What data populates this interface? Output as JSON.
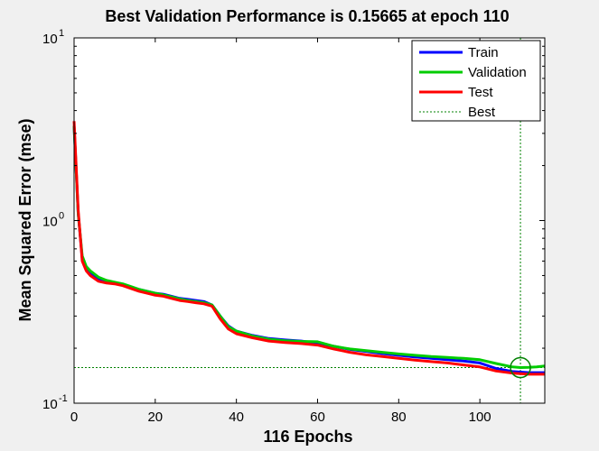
{
  "chart_data": {
    "type": "line",
    "title": "Best Validation Performance is 0.15665 at epoch 110",
    "xlabel": "116 Epochs",
    "ylabel": "Mean Squared Error  (mse)",
    "xlim": [
      0,
      116
    ],
    "ylim": [
      0.1,
      10
    ],
    "yscale": "log",
    "grid": false,
    "legend_position": "top-right",
    "x_ticks": [
      "0",
      "20",
      "40",
      "60",
      "80",
      "100"
    ],
    "x_tick_values": [
      0,
      20,
      40,
      60,
      80,
      100
    ],
    "y_ticks": [
      {
        "base": "10",
        "exp": "1",
        "value": 10
      },
      {
        "base": "10",
        "exp": "0",
        "value": 1
      },
      {
        "base": "10",
        "exp": "-1",
        "value": 0.1
      }
    ],
    "series": [
      {
        "name": "Train",
        "color": "#0000ff",
        "x": [
          0,
          1,
          2,
          3,
          4,
          6,
          8,
          10,
          12,
          14,
          16,
          18,
          20,
          22,
          24,
          26,
          28,
          30,
          32,
          34,
          36,
          38,
          40,
          44,
          48,
          52,
          56,
          60,
          64,
          68,
          72,
          76,
          80,
          84,
          88,
          92,
          96,
          100,
          104,
          108,
          110,
          112,
          114,
          116
        ],
        "y": [
          3.3,
          1.1,
          0.62,
          0.55,
          0.52,
          0.48,
          0.465,
          0.455,
          0.445,
          0.43,
          0.42,
          0.41,
          0.4,
          0.395,
          0.385,
          0.375,
          0.37,
          0.365,
          0.36,
          0.345,
          0.3,
          0.265,
          0.248,
          0.235,
          0.226,
          0.222,
          0.219,
          0.213,
          0.205,
          0.197,
          0.192,
          0.187,
          0.183,
          0.179,
          0.176,
          0.173,
          0.17,
          0.166,
          0.155,
          0.149,
          0.148,
          0.147,
          0.147,
          0.147
        ]
      },
      {
        "name": "Validation",
        "color": "#00cc00",
        "x": [
          0,
          1,
          2,
          3,
          4,
          6,
          8,
          10,
          12,
          14,
          16,
          18,
          20,
          22,
          24,
          26,
          28,
          30,
          32,
          34,
          36,
          38,
          40,
          44,
          48,
          52,
          56,
          60,
          64,
          68,
          72,
          76,
          80,
          84,
          88,
          92,
          96,
          100,
          104,
          108,
          110,
          112,
          114,
          116
        ],
        "y": [
          3.3,
          1.1,
          0.64,
          0.56,
          0.53,
          0.49,
          0.47,
          0.46,
          0.45,
          0.435,
          0.42,
          0.41,
          0.4,
          0.392,
          0.382,
          0.372,
          0.365,
          0.36,
          0.355,
          0.345,
          0.3,
          0.262,
          0.248,
          0.233,
          0.224,
          0.22,
          0.218,
          0.217,
          0.205,
          0.198,
          0.194,
          0.19,
          0.186,
          0.183,
          0.18,
          0.178,
          0.176,
          0.173,
          0.165,
          0.158,
          0.15665,
          0.157,
          0.158,
          0.16
        ]
      },
      {
        "name": "Test",
        "color": "#ff0000",
        "x": [
          0,
          1,
          2,
          3,
          4,
          6,
          8,
          10,
          12,
          14,
          16,
          18,
          20,
          22,
          24,
          26,
          28,
          30,
          32,
          34,
          36,
          38,
          40,
          44,
          48,
          52,
          56,
          60,
          64,
          68,
          72,
          76,
          80,
          84,
          88,
          92,
          96,
          100,
          104,
          108,
          110,
          112,
          114,
          116
        ],
        "y": [
          3.5,
          1.15,
          0.6,
          0.53,
          0.5,
          0.465,
          0.455,
          0.45,
          0.44,
          0.425,
          0.41,
          0.4,
          0.39,
          0.385,
          0.375,
          0.365,
          0.36,
          0.355,
          0.35,
          0.34,
          0.29,
          0.255,
          0.24,
          0.228,
          0.219,
          0.215,
          0.212,
          0.208,
          0.198,
          0.19,
          0.184,
          0.18,
          0.176,
          0.172,
          0.169,
          0.166,
          0.162,
          0.158,
          0.15,
          0.146,
          0.145,
          0.144,
          0.144,
          0.144
        ]
      }
    ],
    "best": {
      "name": "Best",
      "epoch": 110,
      "value": 0.15665,
      "color": "#008000"
    }
  }
}
